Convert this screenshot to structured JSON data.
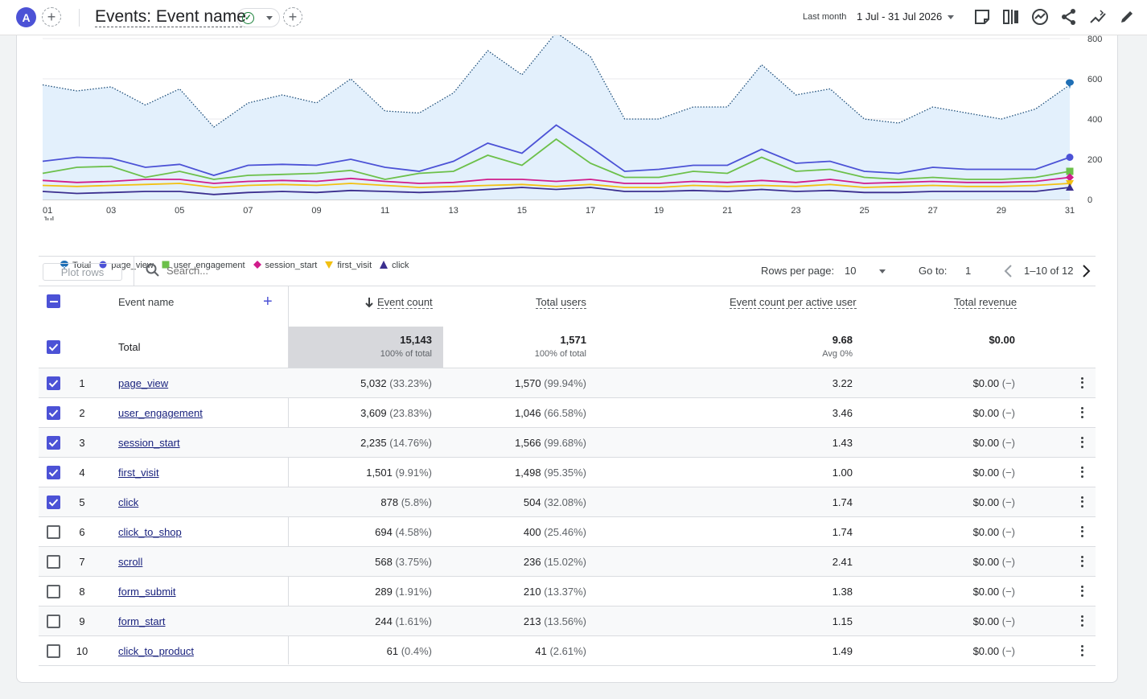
{
  "header": {
    "avatar_letter": "A",
    "title": "Events: Event name",
    "date_label": "Last month",
    "date_range": "1 Jul - 31 Jul 2026"
  },
  "colors": {
    "accent": "#4c52d6",
    "total": "#1f6fb5",
    "page_view": "#4c52d6",
    "user_engagement": "#6cc04a",
    "session_start": "#d01c8b",
    "first_visit": "#f2c012",
    "click": "#3b2f8f"
  },
  "chart_data": {
    "type": "line",
    "x_ticks": [
      "01",
      "03",
      "05",
      "07",
      "09",
      "11",
      "13",
      "15",
      "17",
      "19",
      "21",
      "23",
      "25",
      "27",
      "29",
      "31"
    ],
    "x_sub_tick": "Jul",
    "y_ticks": [
      "0",
      "200",
      "400",
      "600",
      "800"
    ],
    "ylim": [
      0,
      800
    ],
    "legend_position": "bottom-left",
    "grid": true,
    "series": [
      {
        "name": "Total",
        "key": "total",
        "marker": "pin",
        "style": "dotted-area",
        "values": [
          570,
          540,
          560,
          470,
          550,
          360,
          480,
          520,
          480,
          600,
          440,
          430,
          530,
          740,
          620,
          830,
          710,
          400,
          400,
          460,
          460,
          670,
          520,
          550,
          400,
          380,
          460,
          430,
          400,
          450,
          570
        ]
      },
      {
        "name": "page_view",
        "key": "page_view",
        "marker": "circle",
        "values": [
          190,
          210,
          205,
          160,
          175,
          120,
          170,
          175,
          170,
          200,
          160,
          140,
          190,
          280,
          230,
          370,
          260,
          140,
          150,
          170,
          170,
          250,
          180,
          190,
          140,
          130,
          160,
          150,
          150,
          150,
          210
        ]
      },
      {
        "name": "user_engagement",
        "key": "user_engagement",
        "marker": "square",
        "values": [
          130,
          160,
          165,
          110,
          140,
          100,
          120,
          125,
          130,
          145,
          100,
          130,
          140,
          220,
          170,
          300,
          180,
          110,
          110,
          140,
          130,
          210,
          140,
          150,
          110,
          100,
          110,
          100,
          100,
          110,
          140
        ]
      },
      {
        "name": "session_start",
        "key": "session_start",
        "marker": "diamond",
        "values": [
          95,
          85,
          90,
          100,
          100,
          80,
          90,
          95,
          90,
          105,
          90,
          80,
          85,
          100,
          100,
          90,
          100,
          80,
          80,
          90,
          85,
          95,
          85,
          100,
          80,
          85,
          90,
          85,
          85,
          90,
          110
        ]
      },
      {
        "name": "first_visit",
        "key": "first_visit",
        "marker": "triangle-down",
        "values": [
          70,
          65,
          70,
          75,
          80,
          60,
          70,
          75,
          70,
          80,
          70,
          60,
          65,
          70,
          75,
          65,
          75,
          60,
          60,
          70,
          65,
          70,
          65,
          75,
          60,
          65,
          70,
          65,
          65,
          70,
          80
        ]
      },
      {
        "name": "click",
        "key": "click",
        "marker": "triangle",
        "values": [
          40,
          30,
          35,
          40,
          40,
          25,
          35,
          40,
          35,
          45,
          40,
          35,
          40,
          50,
          60,
          50,
          60,
          40,
          40,
          45,
          40,
          50,
          40,
          45,
          35,
          35,
          40,
          40,
          40,
          40,
          60
        ]
      }
    ]
  },
  "toolbar": {
    "plot_rows_label": "Plot rows",
    "search_placeholder": "Search...",
    "rows_per_page_label": "Rows per page:",
    "rows_per_page_value": "10",
    "goto_label": "Go to:",
    "goto_value": "1",
    "page_range": "1–10 of 12"
  },
  "table": {
    "headers": {
      "event_name": "Event name",
      "event_count": "Event count",
      "total_users": "Total users",
      "per_active_user": "Event count per active user",
      "total_revenue": "Total revenue"
    },
    "total": {
      "label": "Total",
      "event_count": "15,143",
      "event_count_sub": "100% of total",
      "total_users": "1,571",
      "total_users_sub": "100% of total",
      "per_active_user": "9.68",
      "per_active_user_sub": "Avg 0%",
      "total_revenue": "$0.00"
    },
    "rows": [
      {
        "idx": "1",
        "name": "page_view",
        "checked": true,
        "event_count": "5,032",
        "event_pct": "(33.23%)",
        "users": "1,570",
        "users_pct": "(99.94%)",
        "per_user": "3.22",
        "revenue": "$0.00",
        "revenue_pct": "(−)"
      },
      {
        "idx": "2",
        "name": "user_engagement",
        "checked": true,
        "event_count": "3,609",
        "event_pct": "(23.83%)",
        "users": "1,046",
        "users_pct": "(66.58%)",
        "per_user": "3.46",
        "revenue": "$0.00",
        "revenue_pct": "(−)"
      },
      {
        "idx": "3",
        "name": "session_start",
        "checked": true,
        "event_count": "2,235",
        "event_pct": "(14.76%)",
        "users": "1,566",
        "users_pct": "(99.68%)",
        "per_user": "1.43",
        "revenue": "$0.00",
        "revenue_pct": "(−)"
      },
      {
        "idx": "4",
        "name": "first_visit",
        "checked": true,
        "event_count": "1,501",
        "event_pct": "(9.91%)",
        "users": "1,498",
        "users_pct": "(95.35%)",
        "per_user": "1.00",
        "revenue": "$0.00",
        "revenue_pct": "(−)"
      },
      {
        "idx": "5",
        "name": "click",
        "checked": true,
        "event_count": "878",
        "event_pct": "(5.8%)",
        "users": "504",
        "users_pct": "(32.08%)",
        "per_user": "1.74",
        "revenue": "$0.00",
        "revenue_pct": "(−)"
      },
      {
        "idx": "6",
        "name": "click_to_shop",
        "checked": false,
        "event_count": "694",
        "event_pct": "(4.58%)",
        "users": "400",
        "users_pct": "(25.46%)",
        "per_user": "1.74",
        "revenue": "$0.00",
        "revenue_pct": "(−)"
      },
      {
        "idx": "7",
        "name": "scroll",
        "checked": false,
        "event_count": "568",
        "event_pct": "(3.75%)",
        "users": "236",
        "users_pct": "(15.02%)",
        "per_user": "2.41",
        "revenue": "$0.00",
        "revenue_pct": "(−)"
      },
      {
        "idx": "8",
        "name": "form_submit",
        "checked": false,
        "event_count": "289",
        "event_pct": "(1.91%)",
        "users": "210",
        "users_pct": "(13.37%)",
        "per_user": "1.38",
        "revenue": "$0.00",
        "revenue_pct": "(−)"
      },
      {
        "idx": "9",
        "name": "form_start",
        "checked": false,
        "event_count": "244",
        "event_pct": "(1.61%)",
        "users": "213",
        "users_pct": "(13.56%)",
        "per_user": "1.15",
        "revenue": "$0.00",
        "revenue_pct": "(−)"
      },
      {
        "idx": "10",
        "name": "click_to_product",
        "checked": false,
        "event_count": "61",
        "event_pct": "(0.4%)",
        "users": "41",
        "users_pct": "(2.61%)",
        "per_user": "1.49",
        "revenue": "$0.00",
        "revenue_pct": "(−)"
      }
    ]
  }
}
